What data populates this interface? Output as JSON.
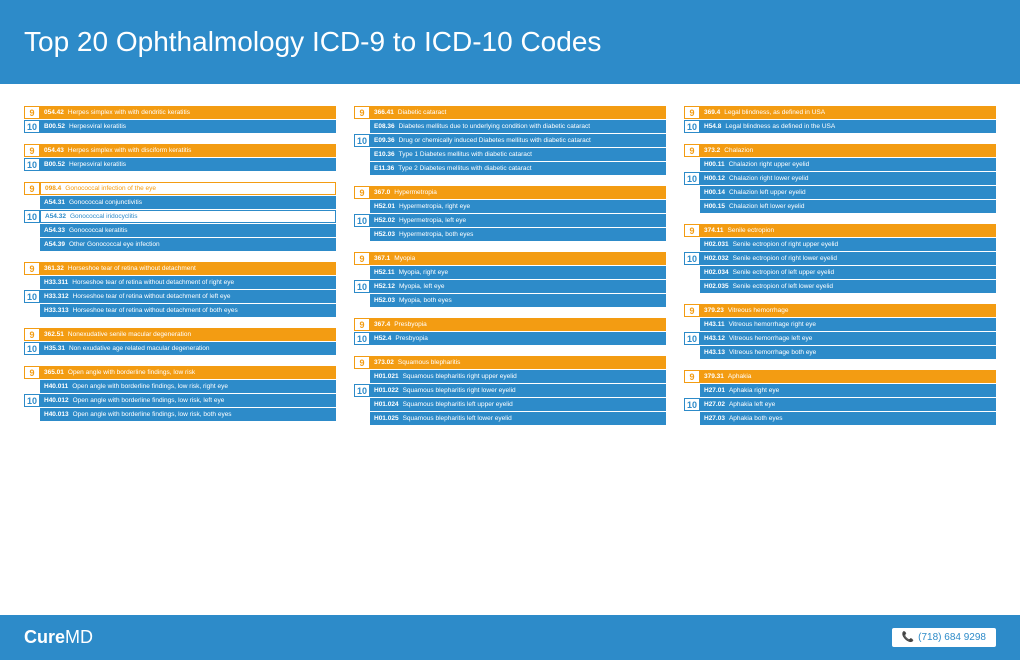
{
  "title": "Top 20 Ophthalmology ICD-9 to ICD-10 Codes",
  "brand_a": "Cure",
  "brand_b": "MD",
  "phone": "(718) 684 9298",
  "columns": [
    [
      {
        "rows": [
          {
            "v": "9",
            "t": "o",
            "c": "054.42",
            "d": "Herpes simplex with with dendritic keratitis"
          },
          {
            "v": "10",
            "t": "b",
            "c": "B00.52",
            "d": "Herpesviral keratitis"
          }
        ]
      },
      {
        "rows": [
          {
            "v": "9",
            "t": "o",
            "c": "054.43",
            "d": "Herpes simplex with with disciform keratitis"
          },
          {
            "v": "10",
            "t": "b",
            "c": "B00.52",
            "d": "Herpesviral keratitis"
          }
        ]
      },
      {
        "rows": [
          {
            "v": "9",
            "t": "oborder",
            "c": "098.4",
            "d": "Gonococcal infection of the eye"
          },
          {
            "v": "",
            "t": "b",
            "c": "A54.31",
            "d": "Gonococcal conjunctivitis"
          },
          {
            "v": "10",
            "t": "bborder",
            "c": "A54.32",
            "d": "Gonococcal iridocyclitis"
          },
          {
            "v": "",
            "t": "b",
            "c": "A54.33",
            "d": "Gonococcal keratitis"
          },
          {
            "v": "",
            "t": "b",
            "c": "A54.39",
            "d": "Other Gonococcal eye infection"
          }
        ]
      },
      {
        "rows": [
          {
            "v": "9",
            "t": "o",
            "c": "361.32",
            "d": "Horseshoe tear of retina without detachment"
          },
          {
            "v": "",
            "t": "b",
            "c": "H33.311",
            "d": "Horseshoe tear of retina without detachment of right eye"
          },
          {
            "v": "10",
            "t": "b",
            "c": "H33.312",
            "d": "Horseshoe tear of retina without detachment of left eye"
          },
          {
            "v": "",
            "t": "b",
            "c": "H33.313",
            "d": "Horseshoe tear of retina without detachment of both eyes"
          }
        ]
      },
      {
        "rows": [
          {
            "v": "9",
            "t": "o",
            "c": "362.51",
            "d": "Nonexudative senile macular degeneration"
          },
          {
            "v": "10",
            "t": "b",
            "c": "H35.31",
            "d": "Non exudative age related macular degeneration"
          }
        ]
      },
      {
        "rows": [
          {
            "v": "9",
            "t": "o",
            "c": "365.01",
            "d": "Open angle with borderline findings, low risk"
          },
          {
            "v": "",
            "t": "b",
            "c": "H40.011",
            "d": "Open angle with borderline findings, low risk, right eye"
          },
          {
            "v": "10",
            "t": "b",
            "c": "H40.012",
            "d": "Open angle with borderline findings, low risk, left eye"
          },
          {
            "v": "",
            "t": "b",
            "c": "H40.013",
            "d": "Open angle with borderline findings, low risk, both eyes"
          }
        ]
      }
    ],
    [
      {
        "rows": [
          {
            "v": "9",
            "t": "o",
            "c": "366.41",
            "d": "Diabetic cataract"
          },
          {
            "v": "",
            "t": "b",
            "c": "E08.36",
            "d": "Diabetes mellitus due to underlying condition with diabetic cataract"
          },
          {
            "v": "10",
            "t": "b",
            "c": "E09.36",
            "d": "Drug or chemically induced Diabetes mellitus with diabetic cataract"
          },
          {
            "v": "",
            "t": "b",
            "c": "E10.36",
            "d": "Type 1 Diabetes mellitus with diabetic cataract"
          },
          {
            "v": "",
            "t": "b",
            "c": "E11.36",
            "d": "Type 2 Diabetes mellitus with diabetic cataract"
          }
        ]
      },
      {
        "rows": [
          {
            "v": "9",
            "t": "o",
            "c": "367.0",
            "d": "Hypermetropia"
          },
          {
            "v": "",
            "t": "b",
            "c": "H52.01",
            "d": "Hypermetropia, right eye"
          },
          {
            "v": "10",
            "t": "b",
            "c": "H52.02",
            "d": "Hypermetropia, left eye"
          },
          {
            "v": "",
            "t": "b",
            "c": "H52.03",
            "d": "Hypermetropia, both eyes"
          }
        ]
      },
      {
        "rows": [
          {
            "v": "9",
            "t": "o",
            "c": "367.1",
            "d": "Myopia"
          },
          {
            "v": "",
            "t": "b",
            "c": "H52.11",
            "d": "Myopia, right eye"
          },
          {
            "v": "10",
            "t": "b",
            "c": "H52.12",
            "d": "Myopia, left eye"
          },
          {
            "v": "",
            "t": "b",
            "c": "H52.03",
            "d": "Myopia, both eyes"
          }
        ]
      },
      {
        "rows": [
          {
            "v": "9",
            "t": "o",
            "c": "367.4",
            "d": "Presbyopia"
          },
          {
            "v": "10",
            "t": "b",
            "c": "H52.4",
            "d": "Presbyopia"
          }
        ]
      },
      {
        "rows": [
          {
            "v": "9",
            "t": "o",
            "c": "373.02",
            "d": "Squamous blepharitis"
          },
          {
            "v": "",
            "t": "b",
            "c": "H01.021",
            "d": "Squamous blepharitis right upper eyelid"
          },
          {
            "v": "10",
            "t": "b",
            "c": "H01.022",
            "d": "Squamous blepharitis right lower eyelid"
          },
          {
            "v": "",
            "t": "b",
            "c": "H01.024",
            "d": "Squamous blepharitis left upper eyelid"
          },
          {
            "v": "",
            "t": "b",
            "c": "H01.025",
            "d": "Squamous blepharitis left lower eyelid"
          }
        ]
      }
    ],
    [
      {
        "rows": [
          {
            "v": "9",
            "t": "o",
            "c": "369.4",
            "d": "Legal blindness, as defined in USA"
          },
          {
            "v": "10",
            "t": "b",
            "c": "H54.8",
            "d": "Legal blindness as defined in the USA"
          }
        ]
      },
      {
        "rows": [
          {
            "v": "9",
            "t": "o",
            "c": "373.2",
            "d": "Chalazion"
          },
          {
            "v": "",
            "t": "b",
            "c": "H00.11",
            "d": "Chalazion right upper eyelid"
          },
          {
            "v": "10",
            "t": "b",
            "c": "H00.12",
            "d": "Chalazion right lower eyelid"
          },
          {
            "v": "",
            "t": "b",
            "c": "H00.14",
            "d": "Chalazion left upper eyelid"
          },
          {
            "v": "",
            "t": "b",
            "c": "H00.15",
            "d": "Chalazion left lower eyelid"
          }
        ]
      },
      {
        "rows": [
          {
            "v": "9",
            "t": "o",
            "c": "374.11",
            "d": "Senile ectropion"
          },
          {
            "v": "",
            "t": "b",
            "c": "H02.031",
            "d": "Senile ectropion of right upper eyelid"
          },
          {
            "v": "10",
            "t": "b",
            "c": "H02.032",
            "d": "Senile ectropion of right lower eyelid"
          },
          {
            "v": "",
            "t": "b",
            "c": "H02.034",
            "d": "Senile ectropion of left upper eyelid"
          },
          {
            "v": "",
            "t": "b",
            "c": "H02.035",
            "d": "Senile ectropion of left lower eyelid"
          }
        ]
      },
      {
        "rows": [
          {
            "v": "9",
            "t": "o",
            "c": "379.23",
            "d": "Vitreous hemorrhage"
          },
          {
            "v": "",
            "t": "b",
            "c": "H43.11",
            "d": "Vitreous hemorrhage right eye"
          },
          {
            "v": "10",
            "t": "b",
            "c": "H43.12",
            "d": "Vitreous hemorrhage left eye"
          },
          {
            "v": "",
            "t": "b",
            "c": "H43.13",
            "d": "Vitreous hemorrhage both eye"
          }
        ]
      },
      {
        "rows": [
          {
            "v": "9",
            "t": "o",
            "c": "379.31",
            "d": "Aphakia"
          },
          {
            "v": "",
            "t": "b",
            "c": "H27.01",
            "d": "Aphakia right eye"
          },
          {
            "v": "10",
            "t": "b",
            "c": "H27.02",
            "d": "Aphakia left eye"
          },
          {
            "v": "",
            "t": "b",
            "c": "H27.03",
            "d": "Aphakia both eyes"
          }
        ]
      }
    ]
  ]
}
